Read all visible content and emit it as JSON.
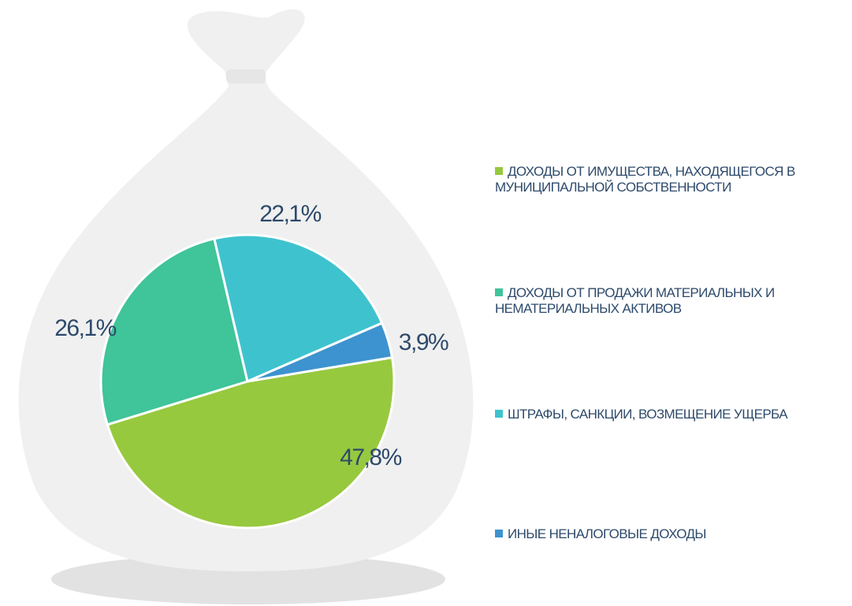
{
  "chart_data": {
    "type": "pie",
    "categories": [
      "ДОХОДЫ ОТ ИМУЩЕСТВА, НАХОДЯЩЕГОСЯ В МУНИЦИПАЛЬНОЙ СОБСТВЕННОСТИ",
      "ДОХОДЫ ОТ ПРОДАЖИ МАТЕРИАЛЬНЫХ И НЕМАТЕРИАЛЬНЫХ АКТИВОВ",
      "ШТРАФЫ, САНКЦИИ, ВОЗМЕЩЕНИЕ УЩЕРБА",
      "ИНЫЕ НЕНАЛОГОВЫЕ ДОХОДЫ"
    ],
    "values": [
      47.8,
      26.1,
      22.1,
      3.9
    ],
    "value_labels": [
      "47,8%",
      "26,1%",
      "22,1%",
      "3,9%"
    ],
    "colors": [
      "#97c93e",
      "#40c49a",
      "#3ec3ce",
      "#3d93cf"
    ],
    "legend": "right"
  }
}
